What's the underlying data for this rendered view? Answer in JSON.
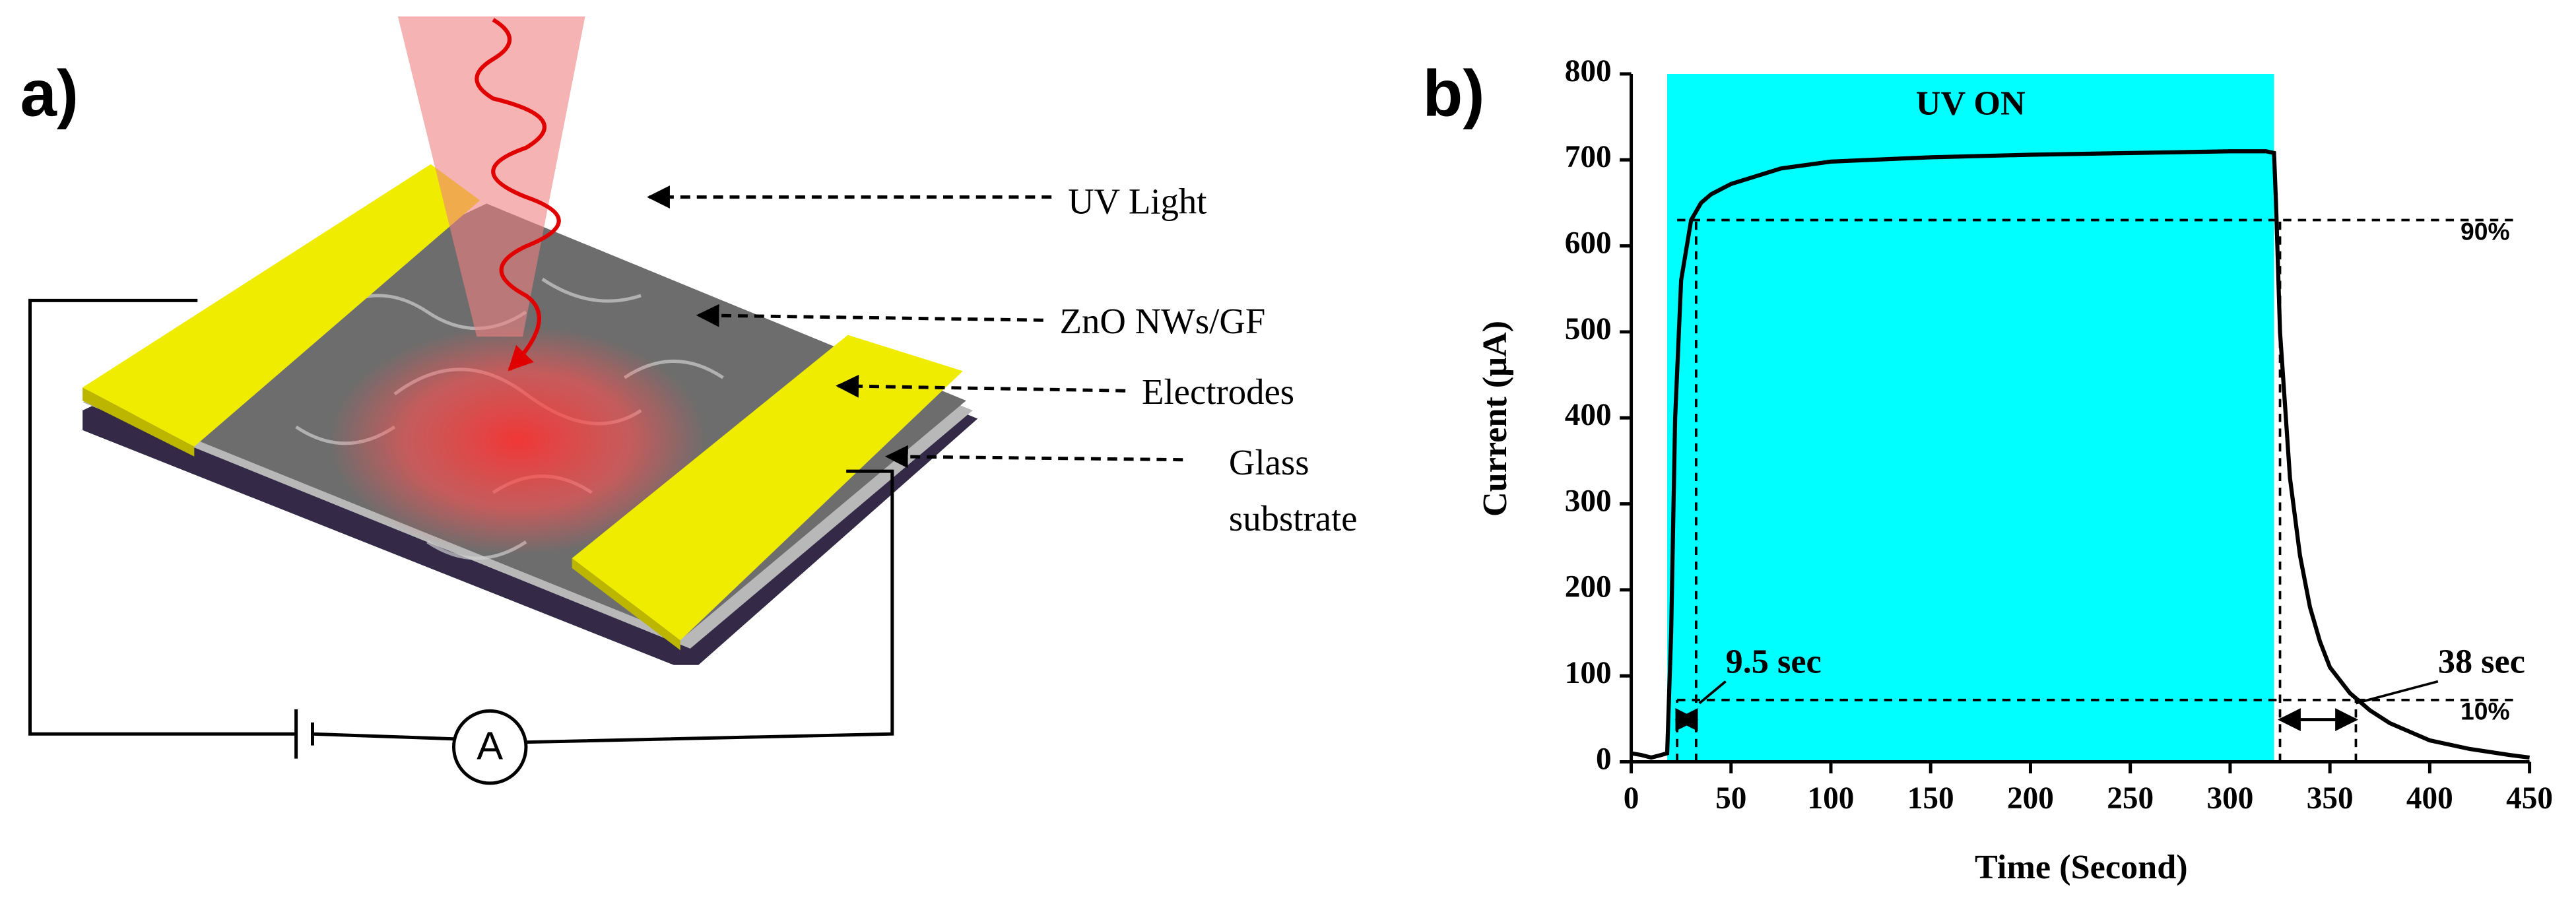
{
  "panel_a": {
    "label": "a)",
    "annotations": [
      "UV Light",
      "ZnO NWs/GF",
      "Electrodes",
      "Glass",
      "substrate"
    ],
    "meter": "A"
  },
  "chart_data": {
    "type": "line",
    "panel_label": "b)",
    "x_label": "Time (Second)",
    "y_label": "Current (μA)",
    "x": [
      0,
      5,
      10,
      15,
      18,
      20,
      22,
      25,
      30,
      35,
      40,
      50,
      75,
      100,
      150,
      200,
      250,
      300,
      318,
      322,
      323,
      325,
      330,
      335,
      340,
      345,
      350,
      360,
      370,
      380,
      390,
      400,
      420,
      440,
      450
    ],
    "values": [
      10,
      8,
      5,
      8,
      10,
      150,
      400,
      560,
      630,
      650,
      660,
      672,
      690,
      698,
      703,
      706,
      708,
      710,
      710,
      708,
      650,
      500,
      330,
      240,
      180,
      140,
      110,
      80,
      60,
      45,
      35,
      25,
      15,
      8,
      5
    ],
    "color": "#000000",
    "xlim": [
      0,
      450
    ],
    "xticks": [
      0,
      50,
      100,
      150,
      200,
      250,
      300,
      350,
      400,
      450
    ],
    "ylim": [
      0,
      800
    ],
    "yticks": [
      0,
      100,
      200,
      300,
      400,
      500,
      600,
      700,
      800
    ],
    "shade": {
      "x": [
        18,
        322
      ],
      "color": "#00ffff",
      "label": "UV ON"
    },
    "hlines": [
      {
        "value": 630,
        "label": "90%"
      },
      {
        "value": 72,
        "label": "10%"
      }
    ],
    "intervals": [
      {
        "x": [
          23,
          32.5
        ],
        "label": "9.5 sec"
      },
      {
        "x": [
          325,
          363
        ],
        "label": "38 sec"
      }
    ]
  }
}
